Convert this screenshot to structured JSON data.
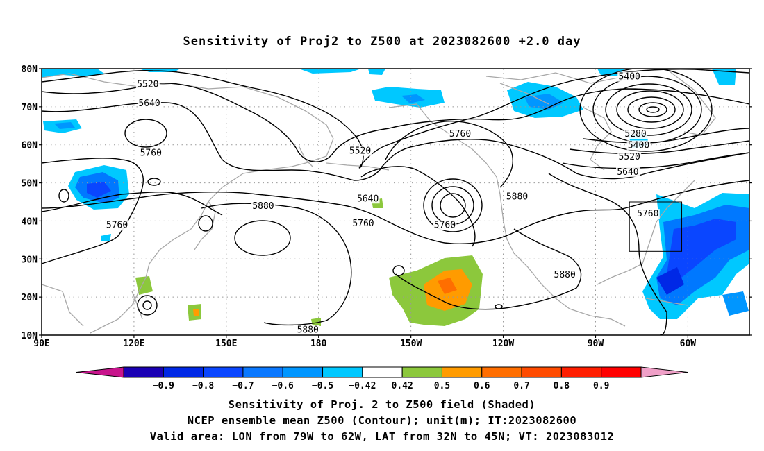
{
  "title": "Sensitivity of Proj2 to Z500 at 2023082600 +2.0 day",
  "map": {
    "lon_range": [
      90,
      320
    ],
    "lat_range": [
      10,
      80
    ],
    "lat_ticks": [
      {
        "value": 80,
        "label": "80N"
      },
      {
        "value": 70,
        "label": "70N"
      },
      {
        "value": 60,
        "label": "60N"
      },
      {
        "value": 50,
        "label": "50N"
      },
      {
        "value": 40,
        "label": "40N"
      },
      {
        "value": 30,
        "label": "30N"
      },
      {
        "value": 20,
        "label": "20N"
      },
      {
        "value": 10,
        "label": "10N"
      }
    ],
    "lon_ticks": [
      {
        "value": 90,
        "label": "90E"
      },
      {
        "value": 120,
        "label": "120E"
      },
      {
        "value": 150,
        "label": "150E"
      },
      {
        "value": 180,
        "label": "180"
      },
      {
        "value": 210,
        "label": "150W"
      },
      {
        "value": 240,
        "label": "120W"
      },
      {
        "value": 270,
        "label": "90W"
      },
      {
        "value": 300,
        "label": "60W"
      }
    ],
    "valid_area": {
      "lon": [
        281,
        298
      ],
      "lat": [
        32,
        45
      ]
    },
    "contour_labels": [
      {
        "text": "5520",
        "lon": 124.5,
        "lat": 75.5
      },
      {
        "text": "5640",
        "lon": 125.0,
        "lat": 70.5
      },
      {
        "text": "5760",
        "lon": 125.5,
        "lat": 57.5
      },
      {
        "text": "5760",
        "lon": 114.5,
        "lat": 38.5
      },
      {
        "text": "5880",
        "lon": 162.0,
        "lat": 43.5
      },
      {
        "text": "5520",
        "lon": 193.5,
        "lat": 58.0
      },
      {
        "text": "5640",
        "lon": 196.0,
        "lat": 45.5
      },
      {
        "text": "5760",
        "lon": 194.5,
        "lat": 39.0
      },
      {
        "text": "5760",
        "lon": 221.0,
        "lat": 38.5
      },
      {
        "text": "5760",
        "lon": 226.0,
        "lat": 62.5
      },
      {
        "text": "5880",
        "lon": 244.5,
        "lat": 46.0
      },
      {
        "text": "5880",
        "lon": 260.0,
        "lat": 25.5
      },
      {
        "text": "5880",
        "lon": 176.5,
        "lat": 11.0
      },
      {
        "text": "5400",
        "lon": 281.0,
        "lat": 77.5
      },
      {
        "text": "5280",
        "lon": 283.0,
        "lat": 62.5
      },
      {
        "text": "5400",
        "lon": 284.0,
        "lat": 59.5
      },
      {
        "text": "5520",
        "lon": 281.0,
        "lat": 56.5
      },
      {
        "text": "5640",
        "lon": 280.5,
        "lat": 52.5
      },
      {
        "text": "5760",
        "lon": 287.0,
        "lat": 41.5
      }
    ]
  },
  "colorbar": {
    "colors": [
      "#1a00b4",
      "#0028e6",
      "#0a46ff",
      "#0a78ff",
      "#0096ff",
      "#00c8ff",
      "#ffffff",
      "#8cc83c",
      "#ff9b00",
      "#ff6e00",
      "#ff4b00",
      "#ff1e00",
      "#ff0000"
    ],
    "left_extend_color": "#c8148c",
    "right_extend_color": "#f0a0c8",
    "tick_labels": [
      "−0.9",
      "−0.8",
      "−0.7",
      "−0.6",
      "−0.5",
      "−0.42",
      "0.42",
      "0.5",
      "0.6",
      "0.7",
      "0.8",
      "0.9"
    ]
  },
  "captions": {
    "line1": "Sensitivity of Proj. 2 to Z500 field (Shaded)",
    "line2": "NCEP ensemble mean Z500 (Contour); unit(m); IT:2023082600",
    "line3": "Valid area: LON from 79W to 62W, LAT from 32N to 45N; VT: 2023083012"
  }
}
